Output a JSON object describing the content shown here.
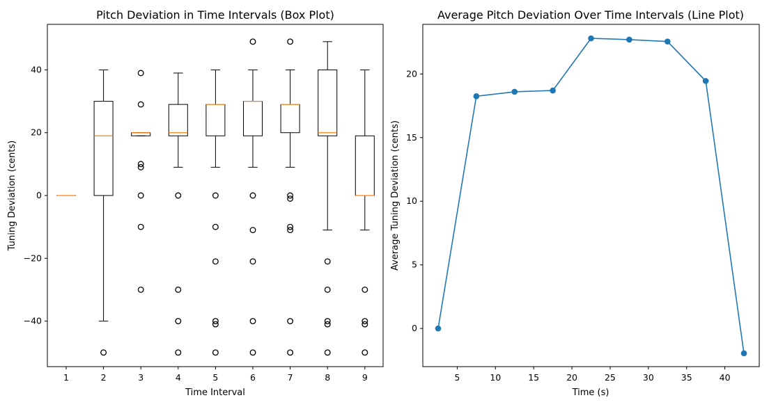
{
  "chart_data": [
    {
      "type": "box",
      "title": "Pitch Deviation in Time Intervals (Box Plot)",
      "xlabel": "Time Interval",
      "ylabel": "Tuning Deviation (cents)",
      "categories": [
        "1",
        "2",
        "3",
        "4",
        "5",
        "6",
        "7",
        "8",
        "9"
      ],
      "ylim": [
        -54.5,
        54.5
      ],
      "yticks": [
        -40,
        -20,
        0,
        20,
        40
      ],
      "grid": false,
      "colors": {
        "box": "#000000",
        "median": "#ff7f0e",
        "flier": "#000000"
      },
      "boxes": [
        {
          "q1": 0,
          "median": 0,
          "q3": 0,
          "whisker_low": 0,
          "whisker_high": 0,
          "fliers": []
        },
        {
          "q1": 0,
          "median": 19,
          "q3": 30,
          "whisker_low": -40,
          "whisker_high": 40,
          "fliers": [
            -50
          ]
        },
        {
          "q1": 19,
          "median": 20,
          "q3": 20,
          "whisker_low": 19,
          "whisker_high": 20,
          "fliers": [
            39,
            29,
            10,
            9,
            0,
            -10,
            -30
          ]
        },
        {
          "q1": 19,
          "median": 20,
          "q3": 29,
          "whisker_low": 9,
          "whisker_high": 39,
          "fliers": [
            0,
            -30,
            -40,
            -50
          ]
        },
        {
          "q1": 19,
          "median": 29,
          "q3": 29,
          "whisker_low": 9,
          "whisker_high": 40,
          "fliers": [
            0,
            -10,
            -21,
            -40,
            -41,
            -50
          ]
        },
        {
          "q1": 19,
          "median": 30,
          "q3": 30,
          "whisker_low": 9,
          "whisker_high": 40,
          "fliers": [
            49,
            0,
            -11,
            -21,
            -40,
            -50
          ]
        },
        {
          "q1": 20,
          "median": 29,
          "q3": 29,
          "whisker_low": 9,
          "whisker_high": 40,
          "fliers": [
            49,
            0,
            -1,
            -10,
            -11,
            -40,
            -50
          ]
        },
        {
          "q1": 19,
          "median": 20,
          "q3": 40,
          "whisker_low": -11,
          "whisker_high": 49,
          "fliers": [
            -21,
            -30,
            -40,
            -41,
            -50
          ]
        },
        {
          "q1": 0,
          "median": 0,
          "q3": 19,
          "whisker_low": -11,
          "whisker_high": 40,
          "fliers": [
            -30,
            -40,
            -41,
            -50
          ]
        }
      ]
    },
    {
      "type": "line",
      "title": "Average Pitch Deviation Over Time Intervals (Line Plot)",
      "xlabel": "Time (s)",
      "ylabel": "Average Tuning Deviation (cents)",
      "x": [
        2.5,
        7.5,
        12.5,
        17.5,
        22.5,
        27.5,
        32.5,
        37.5,
        42.5
      ],
      "y": [
        0,
        18.25,
        18.6,
        18.7,
        22.8,
        22.7,
        22.55,
        19.45,
        -1.95
      ],
      "xlim": [
        0.5,
        44.5
      ],
      "ylim": [
        -3.0,
        23.9
      ],
      "xticks": [
        5,
        10,
        15,
        20,
        25,
        30,
        35,
        40
      ],
      "yticks": [
        0,
        5,
        10,
        15,
        20
      ],
      "grid": false,
      "colors": {
        "line": "#1f77b4"
      }
    }
  ]
}
